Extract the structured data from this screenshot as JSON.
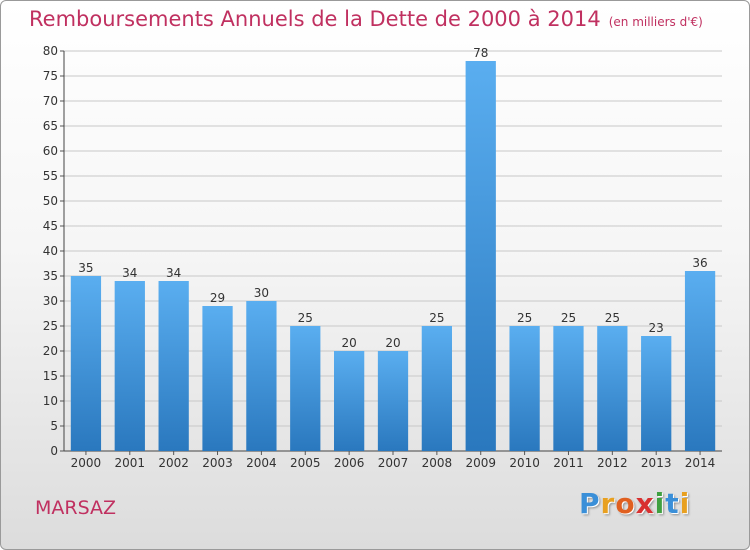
{
  "title": "Remboursements Annuels de la Dette de 2000 à 2014",
  "unit_note": "(en milliers d'€)",
  "town": "MARSAZ",
  "logo": {
    "text": "Proxiti",
    "letters": [
      {
        "char": "P",
        "color": "#3a8fd8"
      },
      {
        "char": "r",
        "color": "#e8a020"
      },
      {
        "char": "o",
        "color": "#e06020"
      },
      {
        "char": "x",
        "color": "#d83030"
      },
      {
        "char": "i",
        "color": "#40a040"
      },
      {
        "char": "t",
        "color": "#3a8fd8"
      },
      {
        "char": "i",
        "color": "#e8a020"
      }
    ]
  },
  "colors": {
    "accent": "#c03060",
    "bar_top": "#5aaef0",
    "bar_bottom": "#2a78be",
    "grid": "#c8c8c8",
    "axis_text": "#333333"
  },
  "chart_data": {
    "type": "bar",
    "categories": [
      "2000",
      "2001",
      "2002",
      "2003",
      "2004",
      "2005",
      "2006",
      "2007",
      "2008",
      "2009",
      "2010",
      "2011",
      "2012",
      "2013",
      "2014"
    ],
    "values": [
      35,
      34,
      34,
      29,
      30,
      25,
      20,
      20,
      25,
      78,
      25,
      25,
      25,
      23,
      36
    ],
    "title": "Remboursements Annuels de la Dette de 2000 à 2014",
    "ylim": [
      0,
      80
    ],
    "ytick_step": 5,
    "grid": true,
    "data_labels": true
  }
}
